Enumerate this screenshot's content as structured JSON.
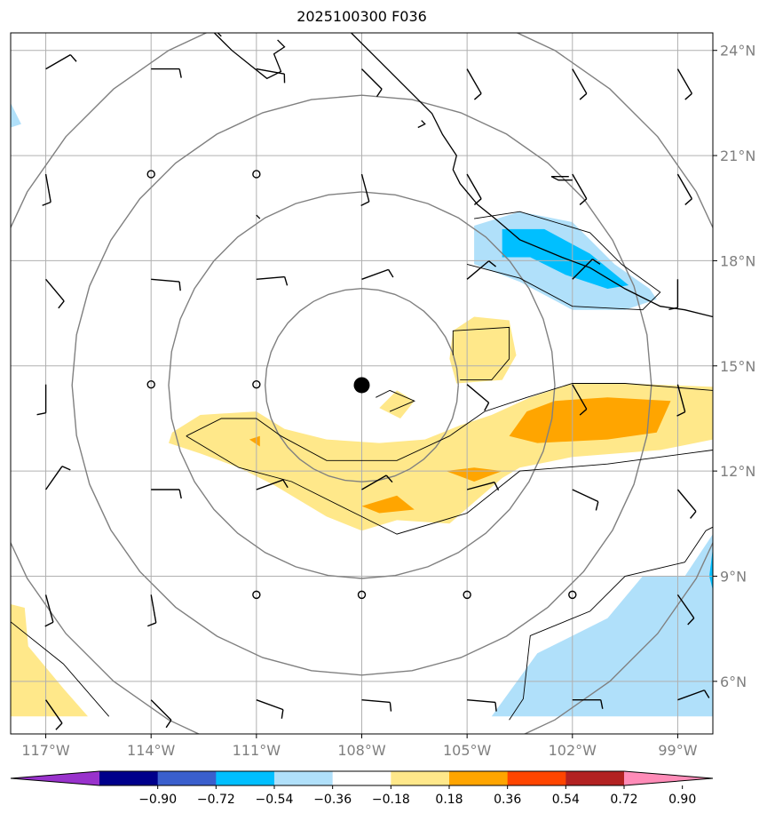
{
  "title": "2025100300 F036",
  "map": {
    "lon_range": [
      -118,
      -98
    ],
    "lat_range": [
      4.5,
      24.5
    ],
    "lon_ticks": [
      {
        "value": -117,
        "label": "117°W"
      },
      {
        "value": -114,
        "label": "114°W"
      },
      {
        "value": -111,
        "label": "111°W"
      },
      {
        "value": -108,
        "label": "108°W"
      },
      {
        "value": -105,
        "label": "105°W"
      },
      {
        "value": -102,
        "label": "102°W"
      },
      {
        "value": -99,
        "label": "99°W"
      }
    ],
    "lat_ticks": [
      {
        "value": 24,
        "label": "24°N"
      },
      {
        "value": 21,
        "label": "21°N"
      },
      {
        "value": 18,
        "label": "18°N"
      },
      {
        "value": 15,
        "label": "15°N"
      },
      {
        "value": 12,
        "label": "12°N"
      },
      {
        "value": 9,
        "label": "9°N"
      },
      {
        "value": 6,
        "label": "6°N"
      }
    ],
    "grid": true,
    "storm_center": {
      "lon": -108.0,
      "lat": 14.45
    },
    "range_rings_deg": [
      2.75,
      5.5,
      8.25,
      11.0
    ]
  },
  "colorbar": {
    "ticks": [
      "−0.90",
      "−0.72",
      "−0.54",
      "−0.36",
      "−0.18",
      "0.18",
      "0.36",
      "0.54",
      "0.72",
      "0.90"
    ],
    "colors": [
      "#9932cc",
      "#00008b",
      "#3a5fcd",
      "#00bfff",
      "#b0e0fa",
      "#ffffff",
      "#ffe88a",
      "#ffa500",
      "#ff4500",
      "#b22222",
      "#ff8cb8"
    ]
  },
  "colors": {
    "grid": "#b0b0b0",
    "rings": "#808080",
    "coast": "#000000",
    "pos1": "#ffe88a",
    "pos2": "#ffa500",
    "neg1": "#b0e0fa",
    "neg2": "#00bfff"
  }
}
